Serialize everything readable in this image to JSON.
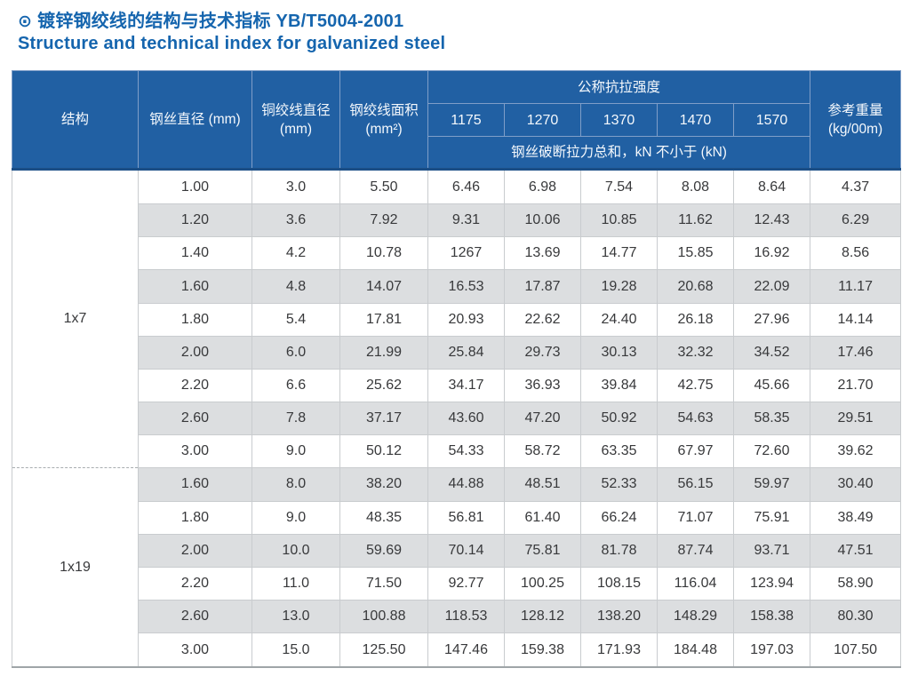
{
  "header": {
    "bullet_icon": "⊙",
    "title_zh": "镀锌钢绞线的结构与技术指标 YB/T5004-2001",
    "title_en": "Structure and technical index for galvanized steel"
  },
  "colors": {
    "title_blue": "#1565ae",
    "header_blue": "#2160a3",
    "header_divider_blue": "#7f9ec8",
    "header_bottom_navy": "#1b4e86",
    "row_alt_gray": "#dcdee0",
    "cell_border_gray": "#c9cccf",
    "data_text": "#38393b"
  },
  "table": {
    "headers": {
      "structure": "结构",
      "wire_diameter": "钢丝直径 (mm)",
      "strand_diameter": "铜绞线直径 (mm)",
      "strand_area": "钢绞线面积 (mm²)",
      "tensile_group": "公称抗拉强度",
      "grades": [
        "1175",
        "1270",
        "1370",
        "1470",
        "1570"
      ],
      "breaking_note": "钢丝破断拉力总和，kN 不小于 (kN)",
      "ref_weight": "参考重量 (kg/00m)"
    },
    "sections": [
      {
        "structure": "1x7",
        "rows": [
          [
            "1.00",
            "3.0",
            "5.50",
            "6.46",
            "6.98",
            "7.54",
            "8.08",
            "8.64",
            "4.37"
          ],
          [
            "1.20",
            "3.6",
            "7.92",
            "9.31",
            "10.06",
            "10.85",
            "11.62",
            "12.43",
            "6.29"
          ],
          [
            "1.40",
            "4.2",
            "10.78",
            "1267",
            "13.69",
            "14.77",
            "15.85",
            "16.92",
            "8.56"
          ],
          [
            "1.60",
            "4.8",
            "14.07",
            "16.53",
            "17.87",
            "19.28",
            "20.68",
            "22.09",
            "11.17"
          ],
          [
            "1.80",
            "5.4",
            "17.81",
            "20.93",
            "22.62",
            "24.40",
            "26.18",
            "27.96",
            "14.14"
          ],
          [
            "2.00",
            "6.0",
            "21.99",
            "25.84",
            "29.73",
            "30.13",
            "32.32",
            "34.52",
            "17.46"
          ],
          [
            "2.20",
            "6.6",
            "25.62",
            "34.17",
            "36.93",
            "39.84",
            "42.75",
            "45.66",
            "21.70"
          ],
          [
            "2.60",
            "7.8",
            "37.17",
            "43.60",
            "47.20",
            "50.92",
            "54.63",
            "58.35",
            "29.51"
          ],
          [
            "3.00",
            "9.0",
            "50.12",
            "54.33",
            "58.72",
            "63.35",
            "67.97",
            "72.60",
            "39.62"
          ]
        ]
      },
      {
        "structure": "1x19",
        "rows": [
          [
            "1.60",
            "8.0",
            "38.20",
            "44.88",
            "48.51",
            "52.33",
            "56.15",
            "59.97",
            "30.40"
          ],
          [
            "1.80",
            "9.0",
            "48.35",
            "56.81",
            "61.40",
            "66.24",
            "71.07",
            "75.91",
            "38.49"
          ],
          [
            "2.00",
            "10.0",
            "59.69",
            "70.14",
            "75.81",
            "81.78",
            "87.74",
            "93.71",
            "47.51"
          ],
          [
            "2.20",
            "11.0",
            "71.50",
            "92.77",
            "100.25",
            "108.15",
            "116.04",
            "123.94",
            "58.90"
          ],
          [
            "2.60",
            "13.0",
            "100.88",
            "118.53",
            "128.12",
            "138.20",
            "148.29",
            "158.38",
            "80.30"
          ],
          [
            "3.00",
            "15.0",
            "125.50",
            "147.46",
            "159.38",
            "171.93",
            "184.48",
            "197.03",
            "107.50"
          ]
        ]
      }
    ]
  }
}
